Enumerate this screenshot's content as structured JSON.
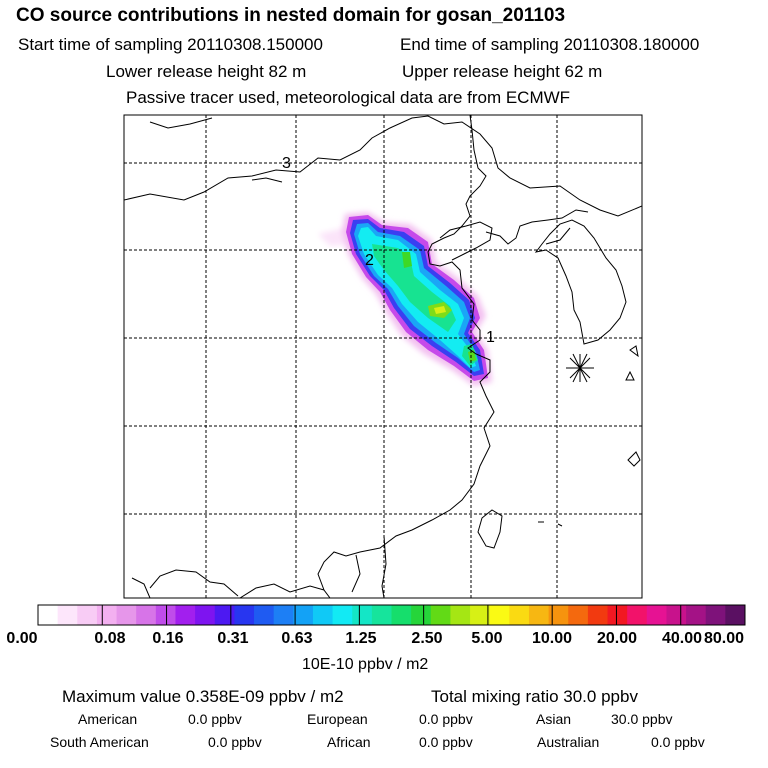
{
  "header": {
    "title": "CO  source contributions in nested domain for gosan_201103",
    "start_label": "Start time of sampling 20110308.150000",
    "end_label": "End time of sampling 20110308.180000",
    "lower_label": "Lower release height   82 m",
    "upper_label": "Upper release height   62 m",
    "tracer_note": "Passive tracer used, meteorological data are from ECMWF"
  },
  "map": {
    "markers": [
      "3",
      "2",
      "1"
    ],
    "receptor_symbol": "✳"
  },
  "colorbar": {
    "colors": [
      "#ffffff",
      "#fde6fb",
      "#f8ccf5",
      "#f3b0f0",
      "#e696ea",
      "#d774e8",
      "#c04cea",
      "#a21fee",
      "#7e14f0",
      "#4d19f2",
      "#2836f0",
      "#1f5bf2",
      "#1d7ff5",
      "#13a2f6",
      "#10c9f6",
      "#12eaf4",
      "#14e6c6",
      "#16e49c",
      "#16de6c",
      "#26d53a",
      "#62da16",
      "#a5e614",
      "#d7f015",
      "#fafa14",
      "#fada12",
      "#f7b712",
      "#f6930e",
      "#f4690e",
      "#f23a10",
      "#f21822",
      "#f2126a",
      "#e61293",
      "#c8128c",
      "#a41286",
      "#7e127a",
      "#5a1062"
    ],
    "tick_labels": [
      "0.00",
      "0.08",
      "0.16",
      "0.31",
      "0.63",
      "1.25",
      "2.50",
      "5.00",
      "10.00",
      "20.00",
      "40.00",
      "80.00"
    ],
    "units": "10E-10 ppbv / m2"
  },
  "footer": {
    "max_label": "Maximum value  0.358E-09 ppbv / m2",
    "total_label": "Total mixing ratio      30.0 ppbv",
    "american_label": "American",
    "american_value": "0.0 ppbv",
    "european_label": "European",
    "european_value": "0.0 ppbv",
    "asian_label": "Asian",
    "asian_value": "30.0 ppbv",
    "samerican_label": "South American",
    "samerican_value": "0.0 ppbv",
    "african_label": "African",
    "african_value": "0.0 ppbv",
    "australian_label": "Australian",
    "australian_value": "0.0 ppbv"
  }
}
